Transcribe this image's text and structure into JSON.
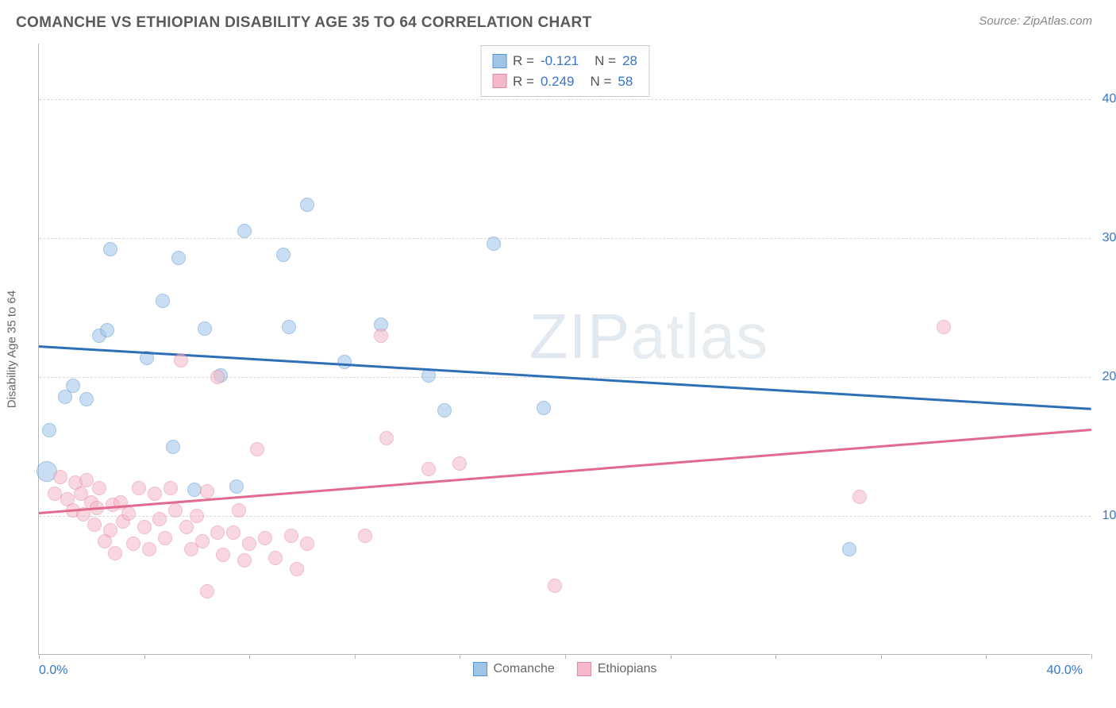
{
  "header": {
    "title": "COMANCHE VS ETHIOPIAN DISABILITY AGE 35 TO 64 CORRELATION CHART",
    "source_prefix": "Source: ",
    "source_name": "ZipAtlas.com"
  },
  "chart": {
    "type": "scatter",
    "y_axis_title": "Disability Age 35 to 64",
    "xlim": [
      0,
      40
    ],
    "ylim": [
      0,
      44
    ],
    "x_label_min": "0.0%",
    "x_label_max": "40.0%",
    "y_ticks": [
      {
        "v": 10,
        "label": "10.0%"
      },
      {
        "v": 20,
        "label": "20.0%"
      },
      {
        "v": 30,
        "label": "30.0%"
      },
      {
        "v": 40,
        "label": "40.0%"
      }
    ],
    "x_tick_positions": [
      0,
      4,
      8,
      12,
      16,
      20,
      24,
      28,
      32,
      36,
      40
    ],
    "grid_color": "#d8d8d8",
    "background_color": "#ffffff",
    "axis_color": "#b5b5b5",
    "tick_label_color": "#3875c6",
    "point_radius": 9,
    "point_opacity": 0.55,
    "line_width": 2.5,
    "watermark_text_bold": "ZIP",
    "watermark_text_thin": "atlas",
    "watermark_color": "#c9d6e4",
    "series": [
      {
        "name": "Comanche",
        "fill": "#9ec4e8",
        "stroke": "#5a94d0",
        "line_color": "#2f6fb8",
        "R_label": "R = ",
        "R": "-0.121",
        "N_label": "N = ",
        "N": "28",
        "trend": {
          "x1": 0,
          "y1": 22.3,
          "x2": 40,
          "y2": 17.8
        },
        "points": [
          {
            "x": 0.4,
            "y": 16.2
          },
          {
            "x": 0.3,
            "y": 13.2,
            "r": 13
          },
          {
            "x": 1.0,
            "y": 18.6
          },
          {
            "x": 1.3,
            "y": 19.4
          },
          {
            "x": 1.8,
            "y": 18.4
          },
          {
            "x": 2.3,
            "y": 23.0
          },
          {
            "x": 2.7,
            "y": 29.2
          },
          {
            "x": 2.6,
            "y": 23.4
          },
          {
            "x": 4.1,
            "y": 21.4
          },
          {
            "x": 4.7,
            "y": 25.5
          },
          {
            "x": 5.1,
            "y": 15.0
          },
          {
            "x": 5.3,
            "y": 28.6
          },
          {
            "x": 5.9,
            "y": 11.9
          },
          {
            "x": 6.3,
            "y": 23.5
          },
          {
            "x": 6.9,
            "y": 20.1
          },
          {
            "x": 7.5,
            "y": 12.1
          },
          {
            "x": 7.8,
            "y": 30.5
          },
          {
            "x": 9.3,
            "y": 28.8
          },
          {
            "x": 9.5,
            "y": 23.6
          },
          {
            "x": 10.2,
            "y": 32.4
          },
          {
            "x": 11.6,
            "y": 21.1
          },
          {
            "x": 13.0,
            "y": 23.8
          },
          {
            "x": 14.8,
            "y": 20.1
          },
          {
            "x": 15.4,
            "y": 17.6
          },
          {
            "x": 17.3,
            "y": 29.6
          },
          {
            "x": 19.2,
            "y": 17.8
          },
          {
            "x": 30.8,
            "y": 7.6
          }
        ]
      },
      {
        "name": "Ethiopians",
        "fill": "#f4b8c8",
        "stroke": "#e388a3",
        "line_color": "#e26a8f",
        "R_label": "R = ",
        "R": "0.249",
        "N_label": "N = ",
        "N": "58",
        "trend": {
          "x1": 0,
          "y1": 10.3,
          "x2": 40,
          "y2": 16.3
        },
        "points": [
          {
            "x": 0.6,
            "y": 11.6
          },
          {
            "x": 0.8,
            "y": 12.8
          },
          {
            "x": 1.1,
            "y": 11.2
          },
          {
            "x": 1.3,
            "y": 10.4
          },
          {
            "x": 1.4,
            "y": 12.4
          },
          {
            "x": 1.6,
            "y": 11.6
          },
          {
            "x": 1.7,
            "y": 10.1
          },
          {
            "x": 1.8,
            "y": 12.6
          },
          {
            "x": 2.0,
            "y": 11.0
          },
          {
            "x": 2.1,
            "y": 9.4
          },
          {
            "x": 2.2,
            "y": 10.6
          },
          {
            "x": 2.3,
            "y": 12.0
          },
          {
            "x": 2.5,
            "y": 8.2
          },
          {
            "x": 2.7,
            "y": 9.0
          },
          {
            "x": 2.8,
            "y": 10.8
          },
          {
            "x": 2.9,
            "y": 7.3
          },
          {
            "x": 3.1,
            "y": 11.0
          },
          {
            "x": 3.2,
            "y": 9.6
          },
          {
            "x": 3.4,
            "y": 10.2
          },
          {
            "x": 3.6,
            "y": 8.0
          },
          {
            "x": 3.8,
            "y": 12.0
          },
          {
            "x": 4.0,
            "y": 9.2
          },
          {
            "x": 4.2,
            "y": 7.6
          },
          {
            "x": 4.4,
            "y": 11.6
          },
          {
            "x": 4.6,
            "y": 9.8
          },
          {
            "x": 4.8,
            "y": 8.4
          },
          {
            "x": 5.0,
            "y": 12.0
          },
          {
            "x": 5.2,
            "y": 10.4
          },
          {
            "x": 5.4,
            "y": 21.2
          },
          {
            "x": 5.6,
            "y": 9.2
          },
          {
            "x": 5.8,
            "y": 7.6
          },
          {
            "x": 6.0,
            "y": 10.0
          },
          {
            "x": 6.2,
            "y": 8.2
          },
          {
            "x": 6.4,
            "y": 11.8
          },
          {
            "x": 6.4,
            "y": 4.6
          },
          {
            "x": 6.8,
            "y": 20.0
          },
          {
            "x": 6.8,
            "y": 8.8
          },
          {
            "x": 7.0,
            "y": 7.2
          },
          {
            "x": 7.4,
            "y": 8.8
          },
          {
            "x": 7.6,
            "y": 10.4
          },
          {
            "x": 7.8,
            "y": 6.8
          },
          {
            "x": 8.0,
            "y": 8.0
          },
          {
            "x": 8.3,
            "y": 14.8
          },
          {
            "x": 8.6,
            "y": 8.4
          },
          {
            "x": 9.0,
            "y": 7.0
          },
          {
            "x": 9.6,
            "y": 8.6
          },
          {
            "x": 9.8,
            "y": 6.2
          },
          {
            "x": 10.2,
            "y": 8.0
          },
          {
            "x": 12.4,
            "y": 8.6
          },
          {
            "x": 13.0,
            "y": 23.0
          },
          {
            "x": 13.2,
            "y": 15.6
          },
          {
            "x": 14.8,
            "y": 13.4
          },
          {
            "x": 16.0,
            "y": 13.8
          },
          {
            "x": 19.6,
            "y": 5.0
          },
          {
            "x": 31.2,
            "y": 11.4
          },
          {
            "x": 34.4,
            "y": 23.6
          }
        ]
      }
    ],
    "legend_bottom": [
      {
        "label": "Comanche",
        "fill": "#9ec4e8",
        "stroke": "#5a94d0"
      },
      {
        "label": "Ethiopians",
        "fill": "#f4b8c8",
        "stroke": "#e388a3"
      }
    ]
  }
}
